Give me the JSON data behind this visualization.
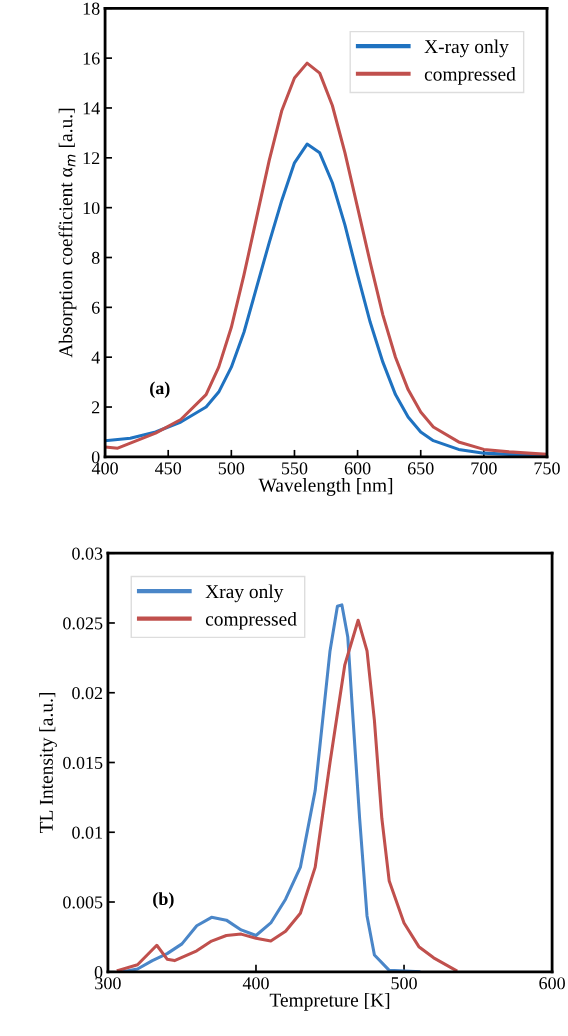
{
  "chart_data": [
    {
      "type": "line",
      "xlabel": "Wavelength [nm]",
      "ylabel": "Absorption coefficient α$_{m}$ [a.u.]",
      "annotations": [
        "(a)"
      ],
      "xlim": [
        400,
        750
      ],
      "xticks": [
        400,
        450,
        500,
        550,
        600,
        650,
        700,
        750
      ],
      "ylim": [
        0,
        18
      ],
      "yticks": [
        0,
        2,
        4,
        6,
        8,
        10,
        12,
        14,
        16,
        18
      ],
      "grid": false,
      "legend": "top right",
      "marker": "none",
      "line_style": "solid",
      "series": [
        {
          "name": "X-ray only",
          "color": "#1f72c0",
          "x": [
            400,
            420,
            440,
            460,
            480,
            490,
            500,
            510,
            520,
            530,
            540,
            550,
            560,
            570,
            580,
            590,
            600,
            610,
            620,
            630,
            640,
            650,
            660,
            680,
            700,
            720,
            750
          ],
          "values": [
            0.65,
            0.75,
            1.0,
            1.4,
            2.0,
            2.6,
            3.6,
            5.0,
            6.8,
            8.6,
            10.3,
            11.8,
            12.55,
            12.2,
            11.0,
            9.3,
            7.3,
            5.4,
            3.8,
            2.5,
            1.6,
            1.0,
            0.65,
            0.3,
            0.15,
            0.1,
            0.05
          ]
        },
        {
          "name": "compressed",
          "color": "#c0504d",
          "x": [
            400,
            410,
            420,
            440,
            460,
            480,
            490,
            500,
            510,
            520,
            530,
            540,
            550,
            560,
            570,
            580,
            590,
            600,
            610,
            620,
            630,
            640,
            650,
            660,
            680,
            700,
            720,
            750
          ],
          "values": [
            0.4,
            0.35,
            0.55,
            0.95,
            1.5,
            2.5,
            3.6,
            5.2,
            7.3,
            9.6,
            11.9,
            13.9,
            15.2,
            15.8,
            15.4,
            14.1,
            12.2,
            10.0,
            7.8,
            5.7,
            4.0,
            2.7,
            1.8,
            1.2,
            0.6,
            0.3,
            0.2,
            0.1
          ]
        }
      ]
    },
    {
      "type": "line",
      "xlabel": "Tempreture [K]",
      "ylabel": "TL Intensity [a.u.]",
      "annotations": [
        "(b)"
      ],
      "xlim": [
        300,
        600
      ],
      "xticks": [
        300,
        400,
        500,
        600
      ],
      "ylim": [
        0,
        0.03
      ],
      "yticks": [
        0,
        0.005,
        0.01,
        0.015,
        0.02,
        0.025,
        0.03
      ],
      "grid": false,
      "legend": "top left",
      "marker": "none",
      "line_style": "solid",
      "series": [
        {
          "name": "Xray only",
          "color": "#4a86c8",
          "x": [
            310,
            320,
            330,
            340,
            350,
            360,
            370,
            380,
            390,
            400,
            410,
            420,
            430,
            440,
            445,
            450,
            455,
            458,
            462,
            465,
            470,
            475,
            480,
            490,
            510
          ],
          "values": [
            0,
            0.0002,
            0.0008,
            0.0013,
            0.002,
            0.0033,
            0.0039,
            0.0037,
            0.003,
            0.0026,
            0.0035,
            0.0052,
            0.0075,
            0.013,
            0.018,
            0.023,
            0.0262,
            0.0263,
            0.024,
            0.019,
            0.011,
            0.004,
            0.0012,
            0.0001,
            0
          ]
        },
        {
          "name": "compressed",
          "color": "#c0504d",
          "x": [
            307,
            320,
            333,
            340,
            345,
            360,
            370,
            380,
            390,
            400,
            410,
            420,
            430,
            440,
            450,
            460,
            469,
            475,
            480,
            485,
            490,
            500,
            510,
            520,
            535
          ],
          "values": [
            0.0001,
            0.0005,
            0.0019,
            0.0009,
            0.0008,
            0.0015,
            0.0022,
            0.0026,
            0.0027,
            0.0024,
            0.0022,
            0.0029,
            0.0042,
            0.0075,
            0.015,
            0.022,
            0.0252,
            0.023,
            0.018,
            0.011,
            0.0065,
            0.0035,
            0.0018,
            0.001,
            0.0001
          ]
        }
      ]
    }
  ]
}
